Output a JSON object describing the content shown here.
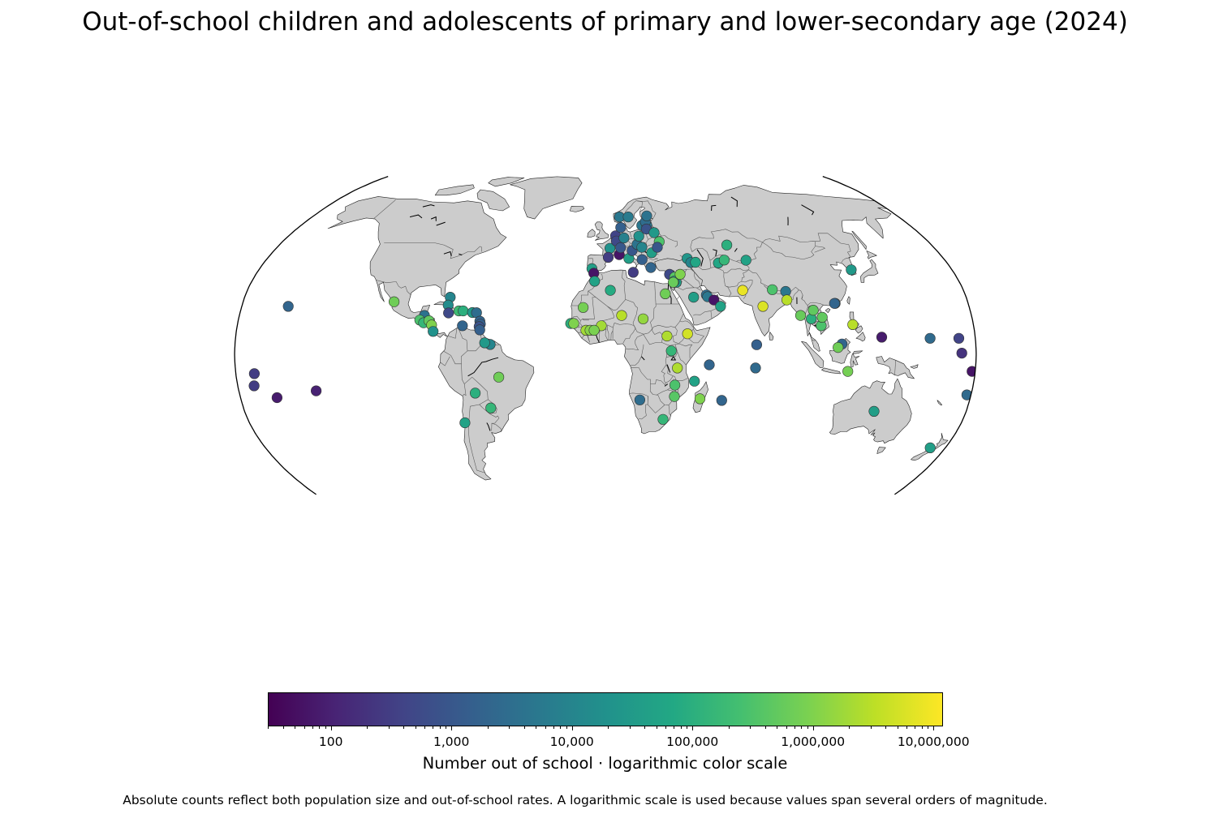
{
  "title": "Out-of-school children and adolescents of primary and lower-secondary age (2024)",
  "projection": "Robinson",
  "map_style": {
    "land_color": "#cccccc",
    "border_color": "#555555",
    "ocean_color": "#ffffff",
    "outline_color": "#000000"
  },
  "colorbar": {
    "colormap": "viridis",
    "scale": "logarithmic",
    "range": [
      30,
      12000000
    ],
    "ticks": [
      {
        "value": 100,
        "label": "100"
      },
      {
        "value": 1000,
        "label": "1,000"
      },
      {
        "value": 10000,
        "label": "10,000"
      },
      {
        "value": 100000,
        "label": "100,000"
      },
      {
        "value": 1000000,
        "label": "1,000,000"
      },
      {
        "value": 10000000,
        "label": "10,000,000"
      }
    ],
    "label": "Number out of school · logarithmic color scale"
  },
  "footnote": "Absolute counts reflect both population size and out-of-school rates. A logarithmic scale is used because values span several orders of magnitude.",
  "chart_data": {
    "type": "scatter",
    "title": "Out-of-school children and adolescents of primary and lower-secondary age (2024)",
    "color_label": "Number out of school · logarithmic color scale",
    "color_scale": "log",
    "color_range": [
      30,
      12000000
    ],
    "points": [
      {
        "lon": -105,
        "lat": 23,
        "value": 700000
      },
      {
        "lon": -89,
        "lat": 17,
        "value": 4000
      },
      {
        "lon": -91,
        "lat": 15,
        "value": 300000
      },
      {
        "lon": -89,
        "lat": 13.8,
        "value": 150000
      },
      {
        "lon": -86.5,
        "lat": 14.7,
        "value": 500000
      },
      {
        "lon": -85,
        "lat": 12.8,
        "value": 1000000
      },
      {
        "lon": -84,
        "lat": 10,
        "value": 20000
      },
      {
        "lon": -77.4,
        "lat": 25,
        "value": 10000
      },
      {
        "lon": -77.9,
        "lat": 21.5,
        "value": 15000
      },
      {
        "lon": -77.3,
        "lat": 18.1,
        "value": 500
      },
      {
        "lon": -72.3,
        "lat": 19,
        "value": 200000
      },
      {
        "lon": -70.2,
        "lat": 19,
        "value": 100000
      },
      {
        "lon": -65.5,
        "lat": 18.3,
        "value": 30000
      },
      {
        "lon": -63.5,
        "lat": 18.2,
        "value": 3000
      },
      {
        "lon": -69.9,
        "lat": 12.5,
        "value": 2000
      },
      {
        "lon": -61.5,
        "lat": 14.5,
        "value": 2000
      },
      {
        "lon": -61.2,
        "lat": 13.2,
        "value": 1500
      },
      {
        "lon": -61.7,
        "lat": 12.1,
        "value": 800
      },
      {
        "lon": -61.3,
        "lat": 10.7,
        "value": 1500
      },
      {
        "lon": -56,
        "lat": 4.3,
        "value": 10000
      },
      {
        "lon": -58.7,
        "lat": 5,
        "value": 30000
      },
      {
        "lon": -52,
        "lat": -10,
        "value": 700000
      },
      {
        "lon": -64,
        "lat": -17,
        "value": 100000
      },
      {
        "lon": -57,
        "lat": -23.5,
        "value": 150000
      },
      {
        "lon": -71,
        "lat": -30,
        "value": 50000
      },
      {
        "lon": -157,
        "lat": 21,
        "value": 2000
      },
      {
        "lon": -172,
        "lat": -13.8,
        "value": 300
      },
      {
        "lon": -171,
        "lat": -8.5,
        "value": 300
      },
      {
        "lon": -162,
        "lat": -19,
        "value": 80
      },
      {
        "lon": -142,
        "lat": -16,
        "value": 100
      },
      {
        "lon": -7,
        "lat": 37.5,
        "value": 40000
      },
      {
        "lon": -6,
        "lat": 35.5,
        "value": 60
      },
      {
        "lon": -5.5,
        "lat": 32,
        "value": 50000
      },
      {
        "lon": 2.5,
        "lat": 28,
        "value": 80000
      },
      {
        "lon": 2.5,
        "lat": 46.5,
        "value": 20000
      },
      {
        "lon": 1.5,
        "lat": 42.5,
        "value": 300
      },
      {
        "lon": 5.8,
        "lat": 52.2,
        "value": 400
      },
      {
        "lon": 6.1,
        "lat": 49.8,
        "value": 500
      },
      {
        "lon": 7.4,
        "lat": 43.7,
        "value": 60
      },
      {
        "lon": 8.3,
        "lat": 46.8,
        "value": 1000
      },
      {
        "lon": 9,
        "lat": 56,
        "value": 1500
      },
      {
        "lon": 10.5,
        "lat": 51.2,
        "value": 8000
      },
      {
        "lon": 8.6,
        "lat": 61,
        "value": 5000
      },
      {
        "lon": 12.5,
        "lat": 42,
        "value": 40000
      },
      {
        "lon": 14.5,
        "lat": 45.5,
        "value": 1000
      },
      {
        "lon": 14,
        "lat": 61,
        "value": 6000
      },
      {
        "lon": 17.5,
        "lat": 48.3,
        "value": 4000
      },
      {
        "lon": 19.5,
        "lat": 41.5,
        "value": 1500
      },
      {
        "lon": 19,
        "lat": 52,
        "value": 20000
      },
      {
        "lon": 20,
        "lat": 47,
        "value": 10000
      },
      {
        "lon": 21.5,
        "lat": 57,
        "value": 5000
      },
      {
        "lon": 24.5,
        "lat": 57,
        "value": 5000
      },
      {
        "lon": 24,
        "lat": 58.7,
        "value": 3000
      },
      {
        "lon": 23.9,
        "lat": 55.3,
        "value": 800
      },
      {
        "lon": 25,
        "lat": 44.5,
        "value": 40000
      },
      {
        "lon": 25.5,
        "lat": 61.5,
        "value": 4000
      },
      {
        "lon": 28,
        "lat": 53.6,
        "value": 30000
      },
      {
        "lon": 23.7,
        "lat": 38,
        "value": 2000
      },
      {
        "lon": 30,
        "lat": 49.5,
        "value": 300000
      },
      {
        "lon": 28.5,
        "lat": 47,
        "value": 1000
      },
      {
        "lon": 14.4,
        "lat": 35.9,
        "value": 300
      },
      {
        "lon": 33,
        "lat": 35,
        "value": 500
      },
      {
        "lon": 35.5,
        "lat": 33.8,
        "value": 400000
      },
      {
        "lon": 36,
        "lat": 31.5,
        "value": 40000
      },
      {
        "lon": 35,
        "lat": 32,
        "value": 20000
      },
      {
        "lon": 34.5,
        "lat": 31.5,
        "value": 600000
      },
      {
        "lon": 38.5,
        "lat": 35,
        "value": 1000000
      },
      {
        "lon": 30,
        "lat": 26.5,
        "value": 700000
      },
      {
        "lon": 44,
        "lat": 25,
        "value": 40000
      },
      {
        "lon": 50.5,
        "lat": 26,
        "value": 3000
      },
      {
        "lon": 51,
        "lat": 25.2,
        "value": 5000
      },
      {
        "lon": 54,
        "lat": 23.8,
        "value": 60
      },
      {
        "lon": 57,
        "lat": 21,
        "value": 50000
      },
      {
        "lon": 43.5,
        "lat": 42,
        "value": 25000
      },
      {
        "lon": 45,
        "lat": 40.2,
        "value": 10000
      },
      {
        "lon": 47.5,
        "lat": 40.3,
        "value": 60000
      },
      {
        "lon": 67,
        "lat": 48,
        "value": 100000
      },
      {
        "lon": 59.5,
        "lat": 40,
        "value": 60000
      },
      {
        "lon": 63,
        "lat": 41.3,
        "value": 150000
      },
      {
        "lon": 74.5,
        "lat": 41.2,
        "value": 50000
      },
      {
        "lon": 69,
        "lat": 28,
        "value": 8000000
      },
      {
        "lon": 78,
        "lat": 21,
        "value": 6000000
      },
      {
        "lon": 84,
        "lat": 28.3,
        "value": 300000
      },
      {
        "lon": 90.5,
        "lat": 27.5,
        "value": 5000
      },
      {
        "lon": 90.3,
        "lat": 23.8,
        "value": 3000000
      },
      {
        "lon": 73.5,
        "lat": 4.2,
        "value": 1500
      },
      {
        "lon": 96,
        "lat": 17,
        "value": 600000
      },
      {
        "lon": 101,
        "lat": 15.5,
        "value": 100000
      },
      {
        "lon": 102.6,
        "lat": 19.3,
        "value": 500000
      },
      {
        "lon": 105.5,
        "lat": 12.5,
        "value": 300000
      },
      {
        "lon": 106.5,
        "lat": 16.2,
        "value": 500000
      },
      {
        "lon": 114,
        "lat": 22.3,
        "value": 5000
      },
      {
        "lon": 113.7,
        "lat": 22.3,
        "value": 2000
      },
      {
        "lon": 127.7,
        "lat": 37,
        "value": 30000
      },
      {
        "lon": 121,
        "lat": 13,
        "value": 3000000
      },
      {
        "lon": 115,
        "lat": 4.5,
        "value": 2000
      },
      {
        "lon": 113,
        "lat": 3,
        "value": 700000
      },
      {
        "lon": 118,
        "lat": -7.5,
        "value": 800000
      },
      {
        "lon": 134,
        "lat": -25,
        "value": 40000
      },
      {
        "lon": 172,
        "lat": -41,
        "value": 40000
      },
      {
        "lon": 134.5,
        "lat": 7.5,
        "value": 80
      },
      {
        "lon": 158,
        "lat": 7,
        "value": 2500
      },
      {
        "lon": 172,
        "lat": 7,
        "value": 400
      },
      {
        "lon": 173,
        "lat": 0.5,
        "value": 200
      },
      {
        "lon": 178.5,
        "lat": -7.5,
        "value": 60
      },
      {
        "lon": 178,
        "lat": -17.8,
        "value": 2500
      },
      {
        "lon": -17,
        "lat": 13.5,
        "value": 100000
      },
      {
        "lon": -15.5,
        "lat": 13.5,
        "value": 1000000
      },
      {
        "lon": -11,
        "lat": 20.5,
        "value": 800000
      },
      {
        "lon": -2,
        "lat": 12.5,
        "value": 2000000
      },
      {
        "lon": 8,
        "lat": 17,
        "value": 3000000
      },
      {
        "lon": 18.5,
        "lat": 15.5,
        "value": 1500000
      },
      {
        "lon": -9.5,
        "lat": 10.5,
        "value": 2000000
      },
      {
        "lon": -7.5,
        "lat": 10.5,
        "value": 1200000
      },
      {
        "lon": -5.5,
        "lat": 10.5,
        "value": 900000
      },
      {
        "lon": 30,
        "lat": 8,
        "value": 2500000
      },
      {
        "lon": 40,
        "lat": 9,
        "value": 5000000
      },
      {
        "lon": 32,
        "lat": 1.5,
        "value": 150000
      },
      {
        "lon": 35,
        "lat": -6,
        "value": 2500000
      },
      {
        "lon": 50.5,
        "lat": -4.6,
        "value": 2000
      },
      {
        "lon": 46.7,
        "lat": -19.5,
        "value": 1000000
      },
      {
        "lon": 57.5,
        "lat": -20.2,
        "value": 2000
      },
      {
        "lon": 43.5,
        "lat": -11.8,
        "value": 50000
      },
      {
        "lon": 34,
        "lat": -13.5,
        "value": 300000
      },
      {
        "lon": 34,
        "lat": -18.5,
        "value": 400000
      },
      {
        "lon": 17,
        "lat": -20,
        "value": 3000
      },
      {
        "lon": 29,
        "lat": -28.5,
        "value": 150000
      },
      {
        "lon": 73,
        "lat": -6,
        "value": 2500
      }
    ]
  }
}
